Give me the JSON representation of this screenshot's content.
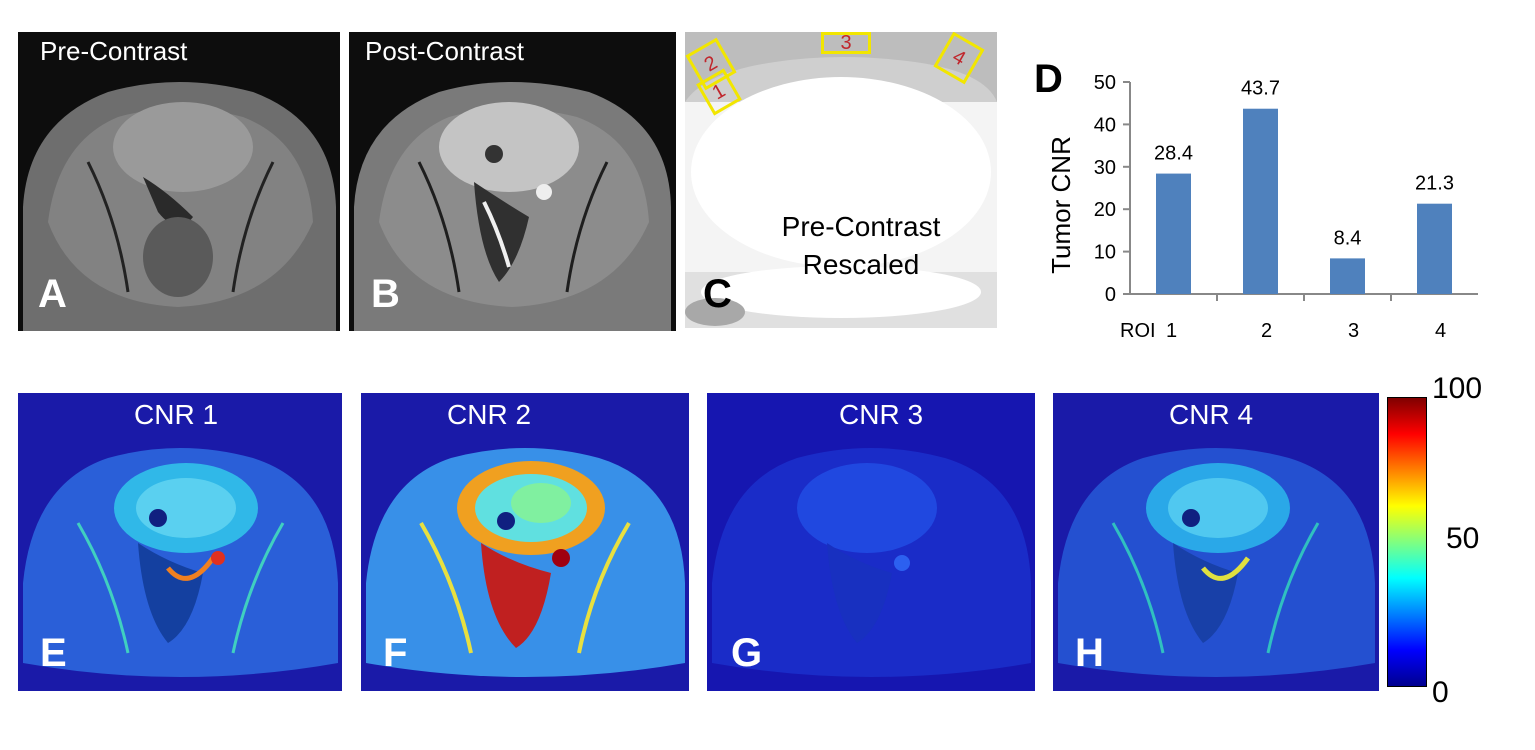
{
  "panels": {
    "A": {
      "title": "Pre-Contrast",
      "label": "A"
    },
    "B": {
      "title": "Post-Contrast",
      "label": "B"
    },
    "C": {
      "label": "C",
      "text_line1": "Pre-Contrast",
      "text_line2": "Rescaled",
      "rois": [
        "1",
        "2",
        "3",
        "4"
      ]
    },
    "E": {
      "title": "CNR 1",
      "label": "E"
    },
    "F": {
      "title": "CNR 2",
      "label": "F"
    },
    "G": {
      "title": "CNR 3",
      "label": "G"
    },
    "H": {
      "title": "CNR 4",
      "label": "H"
    }
  },
  "colorbar": {
    "max_label": "100",
    "mid_label": "50",
    "min_label": "0",
    "colormap": "jet",
    "colors": [
      "#00008f",
      "#0000ff",
      "#0080ff",
      "#00ffff",
      "#80ff80",
      "#ffff00",
      "#ff8000",
      "#ff0000",
      "#800000"
    ]
  },
  "chart_data": {
    "type": "bar",
    "panel_label": "D",
    "categories": [
      "1",
      "2",
      "3",
      "4"
    ],
    "values": [
      28.4,
      43.7,
      8.4,
      21.3
    ],
    "data_labels": [
      "28.4",
      "43.7",
      "8.4",
      "21.3"
    ],
    "xlabel": "ROI",
    "ylabel": "Tumor CNR",
    "ylim": [
      0,
      50
    ],
    "yticks": [
      "0",
      "10",
      "20",
      "30",
      "40",
      "50"
    ],
    "bar_color": "#4f81bd",
    "grid": false
  }
}
